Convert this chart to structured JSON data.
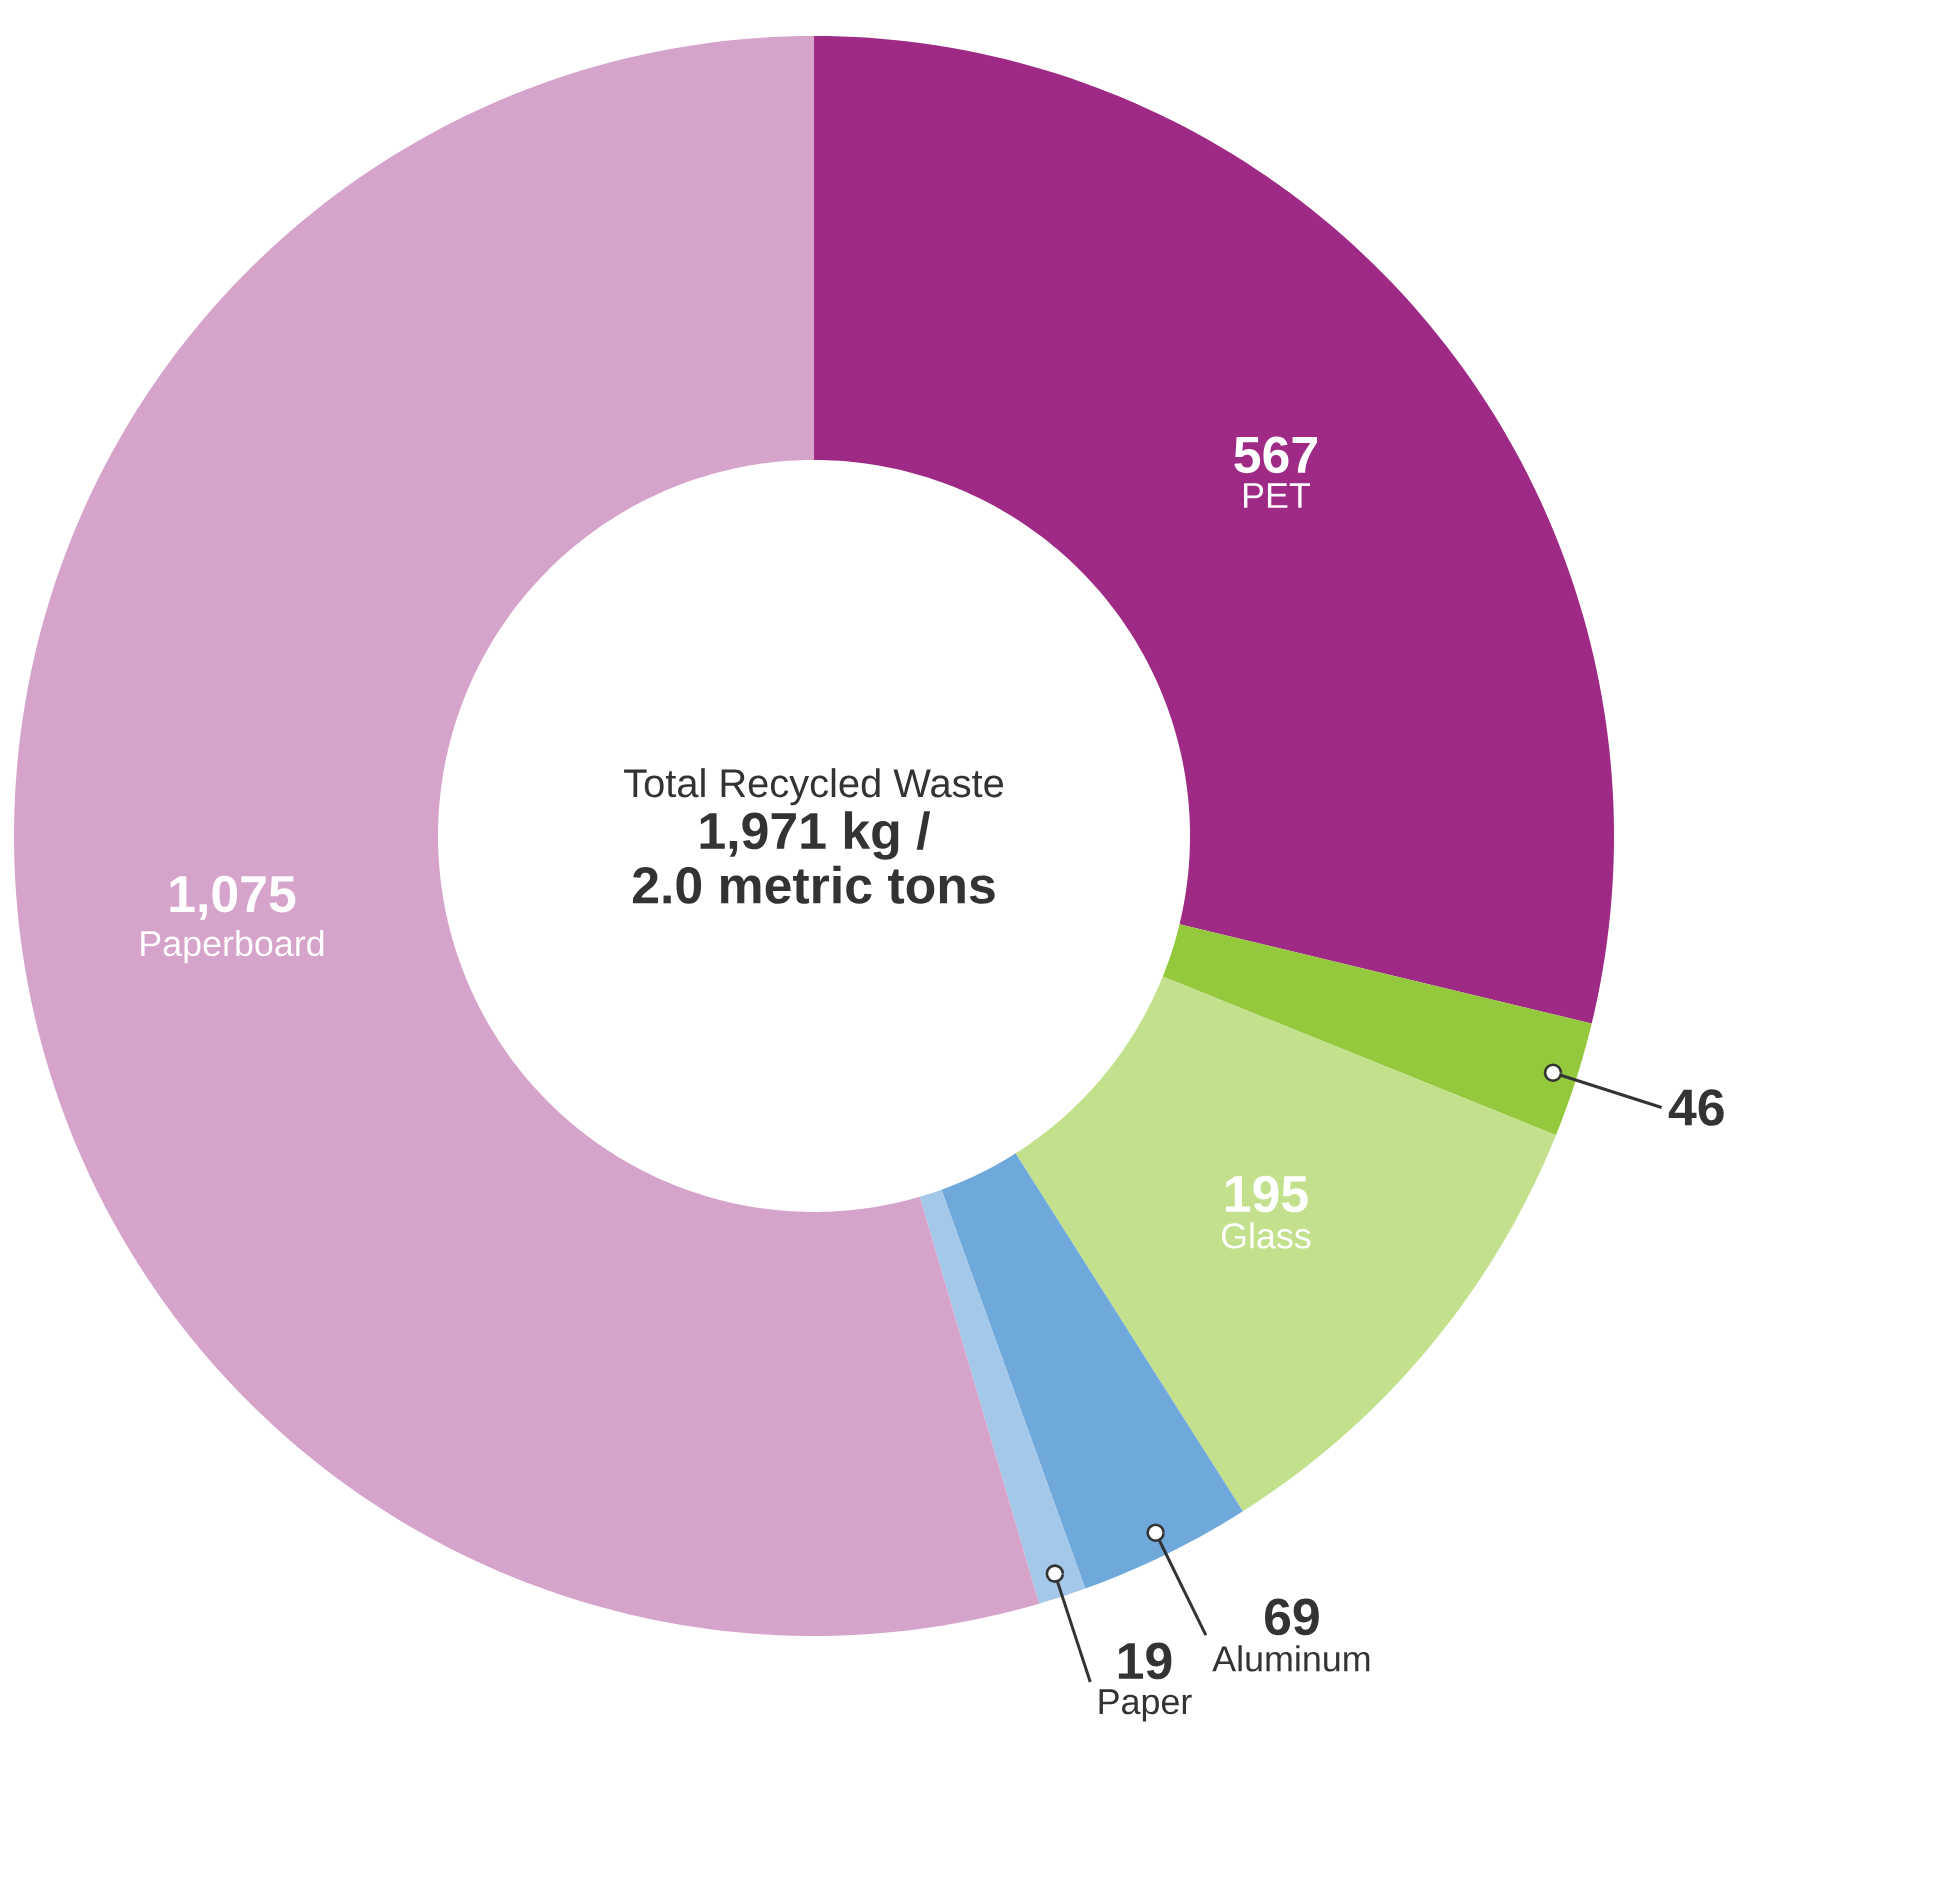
{
  "chart_data": {
    "type": "donut",
    "title": "Total Recycled Waste",
    "annotations": [
      "1,971 kg /",
      "2.0 metric tons"
    ],
    "categories": [
      "PET",
      null,
      "Glass",
      "Aluminum",
      "Paper",
      "Paperboard"
    ],
    "values": [
      567,
      46,
      195,
      69,
      19,
      1075
    ],
    "value_labels": [
      "567",
      "46",
      "195",
      "69",
      "19",
      "1,075"
    ],
    "colors": [
      "#9e2a85",
      "#95c93d",
      "#c3e08c",
      "#6fa9dc",
      "#a4c8ea",
      "#d6a3cb"
    ]
  }
}
